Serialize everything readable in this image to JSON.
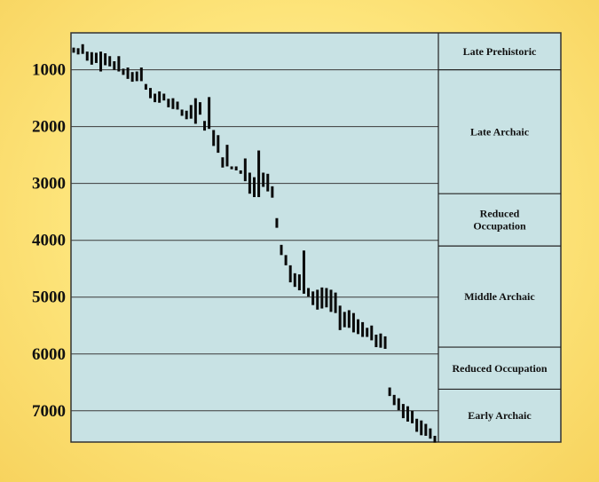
{
  "chart_data": {
    "type": "range-bar",
    "title": "",
    "xlabel": "",
    "ylabel": "",
    "y_axis": {
      "ticks": [
        1000,
        2000,
        3000,
        4000,
        5000,
        6000,
        7000
      ],
      "labels": [
        "1000",
        "2000",
        "3000",
        "4000",
        "5000",
        "6000",
        "7000"
      ],
      "range": [
        350,
        7550
      ],
      "grid": true
    },
    "periods": [
      {
        "label_lines": [
          "Late Prehistoric"
        ],
        "start": 350,
        "end": 1000
      },
      {
        "label_lines": [
          "Late Archaic"
        ],
        "start": 1000,
        "end": 3180
      },
      {
        "label_lines": [
          "Reduced",
          "Occupation"
        ],
        "start": 3180,
        "end": 4100
      },
      {
        "label_lines": [
          "Middle Archaic"
        ],
        "start": 4100,
        "end": 5880
      },
      {
        "label_lines": [
          "Reduced Occupation"
        ],
        "start": 5880,
        "end": 6620
      },
      {
        "label_lines": [
          "Early Archaic"
        ],
        "start": 6620,
        "end": 7550
      }
    ],
    "date_ranges": [
      {
        "min": 610,
        "max": 700
      },
      {
        "min": 620,
        "max": 730
      },
      {
        "min": 550,
        "max": 720
      },
      {
        "min": 680,
        "max": 840
      },
      {
        "min": 690,
        "max": 910
      },
      {
        "min": 700,
        "max": 880
      },
      {
        "min": 680,
        "max": 1030
      },
      {
        "min": 710,
        "max": 920
      },
      {
        "min": 760,
        "max": 940
      },
      {
        "min": 850,
        "max": 1000
      },
      {
        "min": 760,
        "max": 1030
      },
      {
        "min": 980,
        "max": 1090
      },
      {
        "min": 960,
        "max": 1160
      },
      {
        "min": 1040,
        "max": 1210
      },
      {
        "min": 1030,
        "max": 1200
      },
      {
        "min": 960,
        "max": 1200
      },
      {
        "min": 1250,
        "max": 1350
      },
      {
        "min": 1320,
        "max": 1500
      },
      {
        "min": 1420,
        "max": 1570
      },
      {
        "min": 1380,
        "max": 1580
      },
      {
        "min": 1420,
        "max": 1540
      },
      {
        "min": 1510,
        "max": 1660
      },
      {
        "min": 1500,
        "max": 1690
      },
      {
        "min": 1560,
        "max": 1700
      },
      {
        "min": 1700,
        "max": 1810
      },
      {
        "min": 1720,
        "max": 1870
      },
      {
        "min": 1620,
        "max": 1860
      },
      {
        "min": 1500,
        "max": 1950
      },
      {
        "min": 1570,
        "max": 1790
      },
      {
        "min": 1900,
        "max": 2070
      },
      {
        "min": 1480,
        "max": 2040
      },
      {
        "min": 2060,
        "max": 2340
      },
      {
        "min": 2150,
        "max": 2460
      },
      {
        "min": 2540,
        "max": 2720
      },
      {
        "min": 2320,
        "max": 2700
      },
      {
        "min": 2700,
        "max": 2750
      },
      {
        "min": 2700,
        "max": 2770
      },
      {
        "min": 2770,
        "max": 2830
      },
      {
        "min": 2560,
        "max": 2960
      },
      {
        "min": 2810,
        "max": 3180
      },
      {
        "min": 2890,
        "max": 3240
      },
      {
        "min": 2420,
        "max": 3240
      },
      {
        "min": 2810,
        "max": 3060
      },
      {
        "min": 2830,
        "max": 3140
      },
      {
        "min": 3050,
        "max": 3250
      },
      {
        "min": 3610,
        "max": 3780
      },
      {
        "min": 4080,
        "max": 4260
      },
      {
        "min": 4260,
        "max": 4440
      },
      {
        "min": 4440,
        "max": 4740
      },
      {
        "min": 4580,
        "max": 4820
      },
      {
        "min": 4600,
        "max": 4880
      },
      {
        "min": 4180,
        "max": 4940
      },
      {
        "min": 4840,
        "max": 4990
      },
      {
        "min": 4900,
        "max": 5140
      },
      {
        "min": 4870,
        "max": 5220
      },
      {
        "min": 4830,
        "max": 5200
      },
      {
        "min": 4840,
        "max": 5180
      },
      {
        "min": 4870,
        "max": 5260
      },
      {
        "min": 4920,
        "max": 5280
      },
      {
        "min": 5150,
        "max": 5580
      },
      {
        "min": 5260,
        "max": 5530
      },
      {
        "min": 5230,
        "max": 5540
      },
      {
        "min": 5280,
        "max": 5620
      },
      {
        "min": 5390,
        "max": 5650
      },
      {
        "min": 5440,
        "max": 5700
      },
      {
        "min": 5540,
        "max": 5700
      },
      {
        "min": 5500,
        "max": 5760
      },
      {
        "min": 5660,
        "max": 5880
      },
      {
        "min": 5640,
        "max": 5890
      },
      {
        "min": 5690,
        "max": 5910
      },
      {
        "min": 6590,
        "max": 6740
      },
      {
        "min": 6720,
        "max": 6900
      },
      {
        "min": 6780,
        "max": 6990
      },
      {
        "min": 6880,
        "max": 7130
      },
      {
        "min": 6920,
        "max": 7190
      },
      {
        "min": 7000,
        "max": 7220
      },
      {
        "min": 7140,
        "max": 7370
      },
      {
        "min": 7170,
        "max": 7430
      },
      {
        "min": 7230,
        "max": 7440
      },
      {
        "min": 7310,
        "max": 7490
      },
      {
        "min": 7440,
        "max": 7560
      }
    ]
  }
}
